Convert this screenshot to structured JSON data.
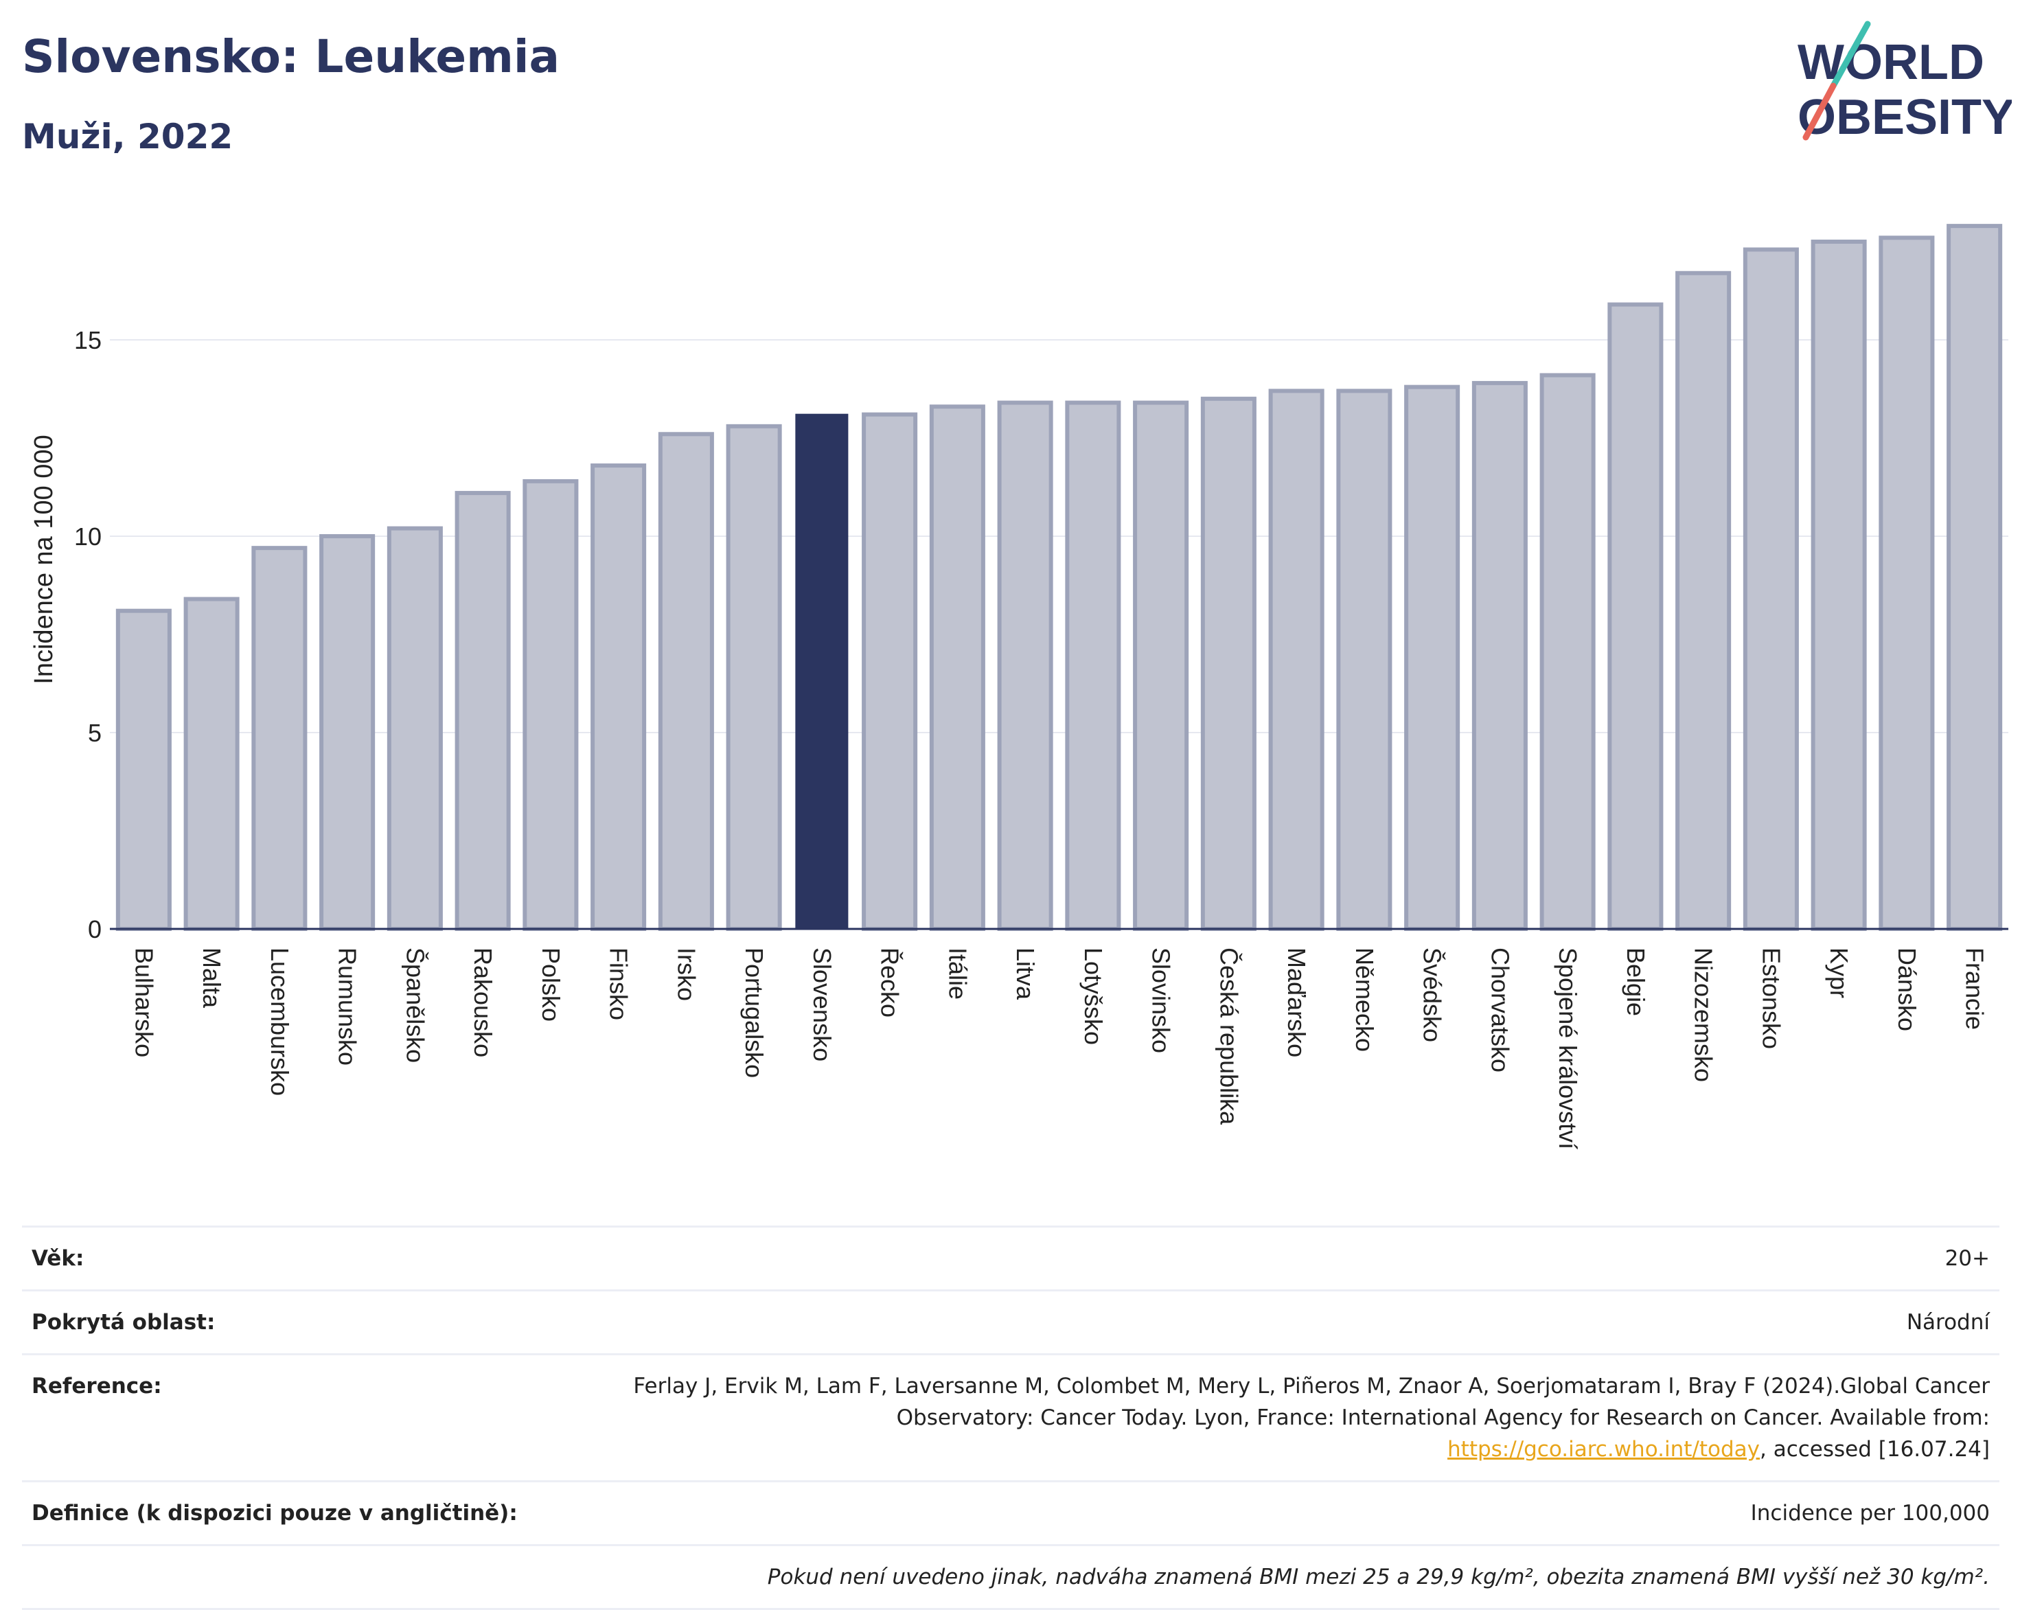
{
  "header": {
    "title": "Slovensko: Leukemia",
    "subtitle": "Muži, 2022"
  },
  "logo": {
    "line1": "WORLD",
    "line2": "OBESITY"
  },
  "chart_data": {
    "type": "bar",
    "title": "Slovensko: Leukemia",
    "subtitle": "Muži, 2022",
    "xlabel": "",
    "ylabel": "Incidence na 100 000",
    "ylim": [
      0,
      18
    ],
    "yticks": [
      0,
      5,
      10,
      15
    ],
    "grid": true,
    "highlight": "Slovensko",
    "categories": [
      "Bulharsko",
      "Malta",
      "Lucembursko",
      "Rumunsko",
      "Španělsko",
      "Rakousko",
      "Polsko",
      "Finsko",
      "Irsko",
      "Portugalsko",
      "Slovensko",
      "Řecko",
      "Itálie",
      "Litva",
      "Lotyšsko",
      "Slovinsko",
      "Česká republika",
      "Maďarsko",
      "Německo",
      "Švédsko",
      "Chorvatsko",
      "Spojené království",
      "Belgie",
      "Nizozemsko",
      "Estonsko",
      "Kypr",
      "Dánsko",
      "Francie"
    ],
    "values": [
      8.1,
      8.4,
      9.7,
      10.0,
      10.2,
      11.1,
      11.4,
      11.8,
      12.6,
      12.8,
      13.1,
      13.1,
      13.3,
      13.4,
      13.4,
      13.4,
      13.5,
      13.7,
      13.7,
      13.8,
      13.9,
      14.1,
      15.9,
      16.7,
      17.3,
      17.5,
      17.6,
      17.9
    ],
    "colors": {
      "bar": "#c0c3d0",
      "bar_border": "#9da3b9",
      "highlight": "#2b3560"
    }
  },
  "info": {
    "age_label": "Věk:",
    "age_value": "20+",
    "area_label": "Pokrytá oblast:",
    "area_value": "Národní",
    "reference_label": "Reference:",
    "reference_text_1": "Ferlay J, Ervik M, Lam F, Laversanne M, Colombet M, Mery L, Piñeros M, Znaor A, Soerjomataram I, Bray F (2024).Global Cancer Observatory: Cancer Today. Lyon, France: International Agency for Research on Cancer. Available from: ",
    "reference_link": "https://gco.iarc.who.int/today",
    "reference_text_2": ", accessed [16.07.24]",
    "definition_label": "Definice (k dispozici pouze v angličtině):",
    "definition_value": "Incidence per 100,000",
    "note": "Pokud není uvedeno jinak, nadváha znamená BMI mezi 25 a 29,9 kg/m², obezita znamená BMI vyšší než 30 kg/m²."
  }
}
